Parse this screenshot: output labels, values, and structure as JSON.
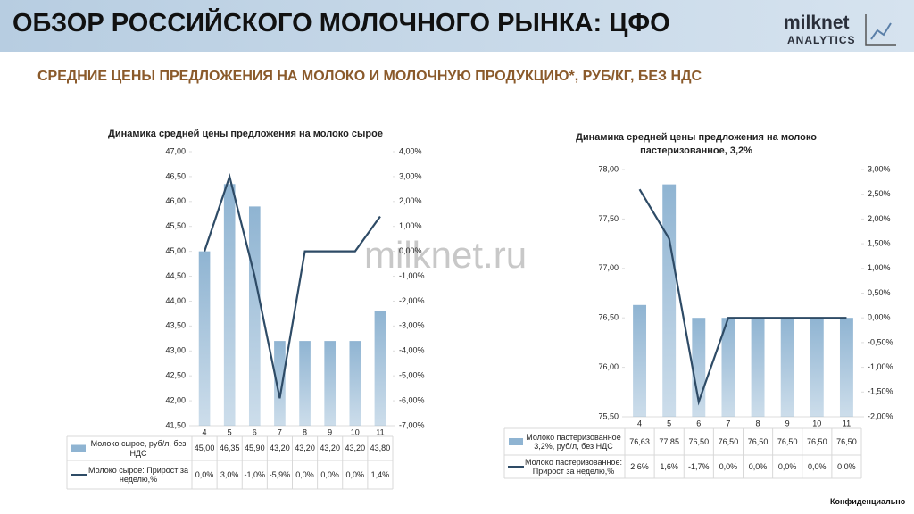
{
  "header": {
    "title": "ОБЗОР РОССИЙСКОГО МОЛОЧНОГО РЫНКА: ЦФО",
    "logo_name": "milknet",
    "logo_sub": "ANALYTICS"
  },
  "subtitle": "СРЕДНИЕ ЦЕНЫ ПРЕДЛОЖЕНИЯ НА МОЛОКО И МОЛОЧНУЮ ПРОДУКЦИЮ*, РУБ/КГ, БЕЗ НДС",
  "watermark": "milknet.ru",
  "footer": "Конфиденциально",
  "chart_data": [
    {
      "type": "bar",
      "title": "Динамика средней цены предложения на молоко сырое",
      "categories": [
        "4",
        "5",
        "6",
        "7",
        "8",
        "9",
        "10",
        "11"
      ],
      "series": [
        {
          "name": "Молоко сырое, руб/л, без НДС",
          "color": "#8fb4d2",
          "values": [
            45.0,
            46.35,
            45.9,
            43.2,
            43.2,
            43.2,
            43.2,
            43.8
          ],
          "value_labels": [
            "45,00",
            "46,35",
            "45,90",
            "43,20",
            "43,20",
            "43,20",
            "43,20",
            "43,80"
          ]
        },
        {
          "name": "Молоко сырое: Прирост за неделю,%",
          "type": "line",
          "axis": "y2",
          "color": "#2e4b66",
          "values": [
            0.0,
            3.0,
            -1.0,
            -5.9,
            0.0,
            0.0,
            0.0,
            1.4
          ],
          "value_labels": [
            "0,0%",
            "3,0%",
            "-1,0%",
            "-5,9%",
            "0,0%",
            "0,0%",
            "0,0%",
            "1,4%"
          ]
        }
      ],
      "ylim": [
        41.5,
        47
      ],
      "yticks": [
        {
          "value": 41.5,
          "label": "41,50"
        },
        {
          "value": 42,
          "label": "42,00"
        },
        {
          "value": 42.5,
          "label": "42,50"
        },
        {
          "value": 43,
          "label": "43,00"
        },
        {
          "value": 43.5,
          "label": "43,50"
        },
        {
          "value": 44,
          "label": "44,00"
        },
        {
          "value": 44.5,
          "label": "44,50"
        },
        {
          "value": 45,
          "label": "45,00"
        },
        {
          "value": 45.5,
          "label": "45,50"
        },
        {
          "value": 46,
          "label": "46,00"
        },
        {
          "value": 46.5,
          "label": "46,50"
        },
        {
          "value": 47,
          "label": "47,00"
        }
      ],
      "y2lim": [
        -7,
        4
      ],
      "y2ticks": [
        {
          "value": -7,
          "label": "-7,00%"
        },
        {
          "value": -6,
          "label": "-6,00%"
        },
        {
          "value": -5,
          "label": "-5,00%"
        },
        {
          "value": -4,
          "label": "-4,00%"
        },
        {
          "value": -3,
          "label": "-3,00%"
        },
        {
          "value": -2,
          "label": "-2,00%"
        },
        {
          "value": -1,
          "label": "-1,00%"
        },
        {
          "value": 0,
          "label": "0,00%"
        },
        {
          "value": 1,
          "label": "1,00%"
        },
        {
          "value": 2,
          "label": "2,00%"
        },
        {
          "value": 3,
          "label": "3,00%"
        },
        {
          "value": 4,
          "label": "4,00%"
        }
      ]
    },
    {
      "type": "bar",
      "title": "Динамика средней цены предложения на молоко пастеризованное, 3,2%",
      "categories": [
        "4",
        "5",
        "6",
        "7",
        "8",
        "9",
        "10",
        "11"
      ],
      "series": [
        {
          "name": "Молоко пастеризованное 3,2%, руб/л, без НДС",
          "color": "#8fb4d2",
          "values": [
            76.63,
            77.85,
            76.5,
            76.5,
            76.5,
            76.5,
            76.5,
            76.5
          ],
          "value_labels": [
            "76,63",
            "77,85",
            "76,50",
            "76,50",
            "76,50",
            "76,50",
            "76,50",
            "76,50"
          ]
        },
        {
          "name": "Молоко пастеризованное: Прирост за неделю,%",
          "type": "line",
          "axis": "y2",
          "color": "#2e4b66",
          "values": [
            2.6,
            1.6,
            -1.7,
            0.0,
            0.0,
            0.0,
            0.0,
            0.0
          ],
          "value_labels": [
            "2,6%",
            "1,6%",
            "-1,7%",
            "0,0%",
            "0,0%",
            "0,0%",
            "0,0%",
            "0,0%"
          ]
        }
      ],
      "ylim": [
        75.5,
        78
      ],
      "yticks": [
        {
          "value": 75.5,
          "label": "75,50"
        },
        {
          "value": 76,
          "label": "76,00"
        },
        {
          "value": 76.5,
          "label": "76,50"
        },
        {
          "value": 77,
          "label": "77,00"
        },
        {
          "value": 77.5,
          "label": "77,50"
        },
        {
          "value": 78,
          "label": "78,00"
        }
      ],
      "y2lim": [
        -2,
        3
      ],
      "y2ticks": [
        {
          "value": -2,
          "label": "-2,00%"
        },
        {
          "value": -1.5,
          "label": "-1,50%"
        },
        {
          "value": -1,
          "label": "-1,00%"
        },
        {
          "value": -0.5,
          "label": "-0,50%"
        },
        {
          "value": 0,
          "label": "0,00%"
        },
        {
          "value": 0.5,
          "label": "0,50%"
        },
        {
          "value": 1,
          "label": "1,00%"
        },
        {
          "value": 1.5,
          "label": "1,50%"
        },
        {
          "value": 2,
          "label": "2,00%"
        },
        {
          "value": 2.5,
          "label": "2,50%"
        },
        {
          "value": 3,
          "label": "3,00%"
        }
      ]
    }
  ]
}
